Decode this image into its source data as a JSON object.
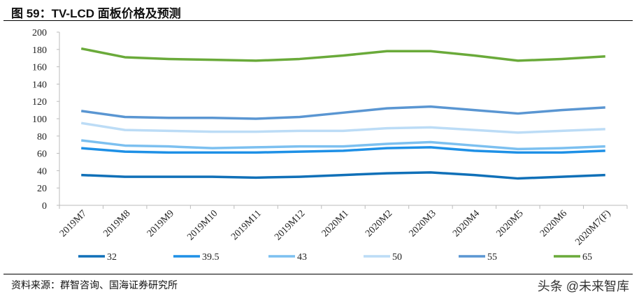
{
  "header": {
    "title": "图 59：TV-LCD 面板价格及预测"
  },
  "footer": {
    "source": "资料来源：群智咨询、国海证券研究所",
    "watermark": "头条 @未来智库"
  },
  "chart_data": {
    "type": "line",
    "title": "",
    "xlabel": "",
    "ylabel": "",
    "ylim": [
      0,
      200
    ],
    "yticks": [
      0,
      20,
      40,
      60,
      80,
      100,
      120,
      140,
      160,
      180,
      200
    ],
    "categories": [
      "2019M7",
      "2019M8",
      "2019M9",
      "2019M10",
      "2019M11",
      "2019M12",
      "2020M1",
      "2020M2",
      "2020M3",
      "2020M4",
      "2020M5",
      "2020M6",
      "2020M7(F)"
    ],
    "legend_position": "bottom",
    "grid": false,
    "series": [
      {
        "name": "32",
        "color": "#1070b8",
        "values": [
          35,
          33,
          33,
          33,
          32,
          33,
          35,
          37,
          38,
          35,
          31,
          33,
          35
        ]
      },
      {
        "name": "39.5",
        "color": "#1e90e6",
        "values": [
          66,
          62,
          61,
          61,
          61,
          62,
          63,
          66,
          67,
          63,
          61,
          61,
          63
        ]
      },
      {
        "name": "43",
        "color": "#7cc0f0",
        "values": [
          75,
          69,
          68,
          66,
          67,
          68,
          68,
          71,
          73,
          69,
          65,
          66,
          68
        ]
      },
      {
        "name": "50",
        "color": "#bcdcf6",
        "values": [
          95,
          87,
          86,
          85,
          85,
          86,
          86,
          89,
          90,
          87,
          84,
          86,
          88
        ]
      },
      {
        "name": "55",
        "color": "#5a96d2",
        "values": [
          109,
          102,
          101,
          101,
          100,
          102,
          107,
          112,
          114,
          110,
          106,
          110,
          113
        ]
      },
      {
        "name": "65",
        "color": "#6aaa3a",
        "values": [
          181,
          171,
          169,
          168,
          167,
          169,
          173,
          178,
          178,
          173,
          167,
          169,
          172
        ]
      }
    ]
  }
}
